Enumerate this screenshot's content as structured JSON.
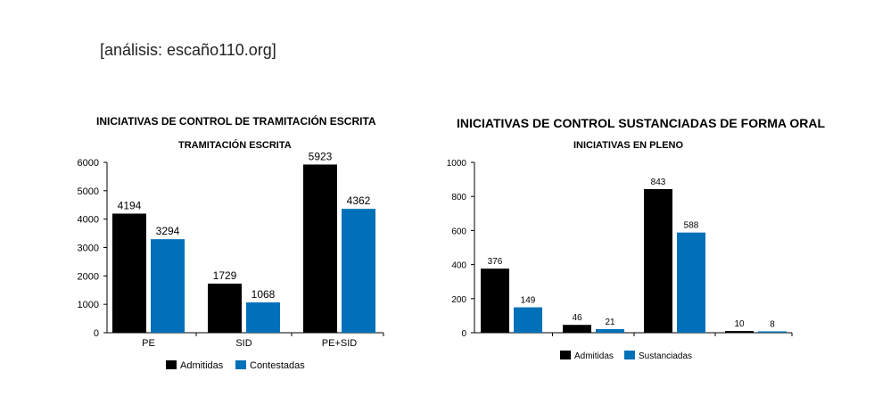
{
  "header": {
    "source": "[análisis: escaño110.org]"
  },
  "colors": {
    "series_a": "#000000",
    "series_b": "#0070b8",
    "axis": "#000000"
  },
  "chart_data": [
    {
      "type": "bar",
      "title": "INICIATIVAS DE CONTROL DE TRAMITACIÓN ESCRITA",
      "subtitle": "TRAMITACIÓN ESCRITA",
      "categories": [
        "PE",
        "SID",
        "PE+SID"
      ],
      "series": [
        {
          "name": "Admitidas",
          "values": [
            4194,
            1729,
            5923
          ]
        },
        {
          "name": "Contestadas",
          "values": [
            3294,
            1068,
            4362
          ]
        }
      ],
      "ylim": [
        0,
        6000
      ],
      "yticks": [
        0,
        1000,
        2000,
        3000,
        4000,
        5000,
        6000
      ],
      "xlabel": "",
      "ylabel": "",
      "grid": false,
      "legend": "bottom"
    },
    {
      "type": "bar",
      "title": "INICIATIVAS DE CONTROL SUSTANCIADAS DE FORMA ORAL",
      "subtitle": "INICIATIVAS EN PLENO",
      "categories": [
        "",
        "",
        "",
        ""
      ],
      "series": [
        {
          "name": "Admitidas",
          "values": [
            376,
            46,
            843,
            10
          ]
        },
        {
          "name": "Sustanciadas",
          "values": [
            149,
            21,
            588,
            8
          ]
        }
      ],
      "ylim": [
        0,
        1000
      ],
      "yticks": [
        0,
        200,
        400,
        600,
        800,
        1000
      ],
      "xlabel": "",
      "ylabel": "",
      "grid": false,
      "legend": "bottom"
    }
  ]
}
